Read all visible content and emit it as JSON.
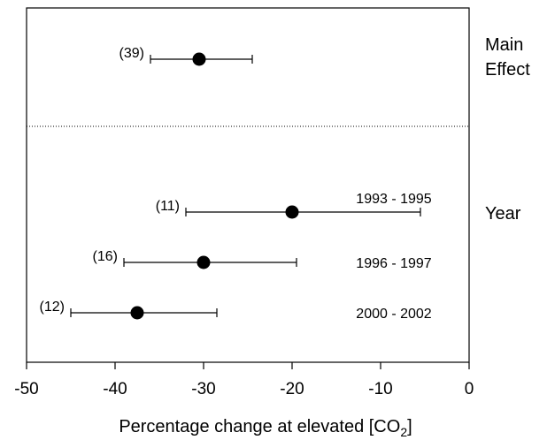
{
  "chart_data": {
    "type": "forest",
    "xlabel": "Percentage change at elevated [CO",
    "xlabel_sub": "2",
    "xlabel_end": "]",
    "xlim": [
      -50,
      0
    ],
    "xticks": [
      "-50",
      "-40",
      "-30",
      "-20",
      "-10",
      "0"
    ],
    "groups": [
      {
        "label_lines": [
          "Main",
          "Effect"
        ],
        "rows": [
          {
            "n_label": "(39)",
            "mean": -30.5,
            "ci": [
              -36,
              -24.5
            ],
            "row_label": ""
          }
        ]
      },
      {
        "label_lines": [
          "Year"
        ],
        "rows": [
          {
            "n_label": "(11)",
            "mean": -20,
            "ci": [
              -32,
              -5.5
            ],
            "row_label": "1993 - 1995"
          },
          {
            "n_label": "(16)",
            "mean": -30,
            "ci": [
              -39,
              -19.5
            ],
            "row_label": "1996 - 1997"
          },
          {
            "n_label": "(12)",
            "mean": -37.5,
            "ci": [
              -45,
              -28.5
            ],
            "row_label": "2000 - 2002"
          }
        ]
      }
    ]
  }
}
